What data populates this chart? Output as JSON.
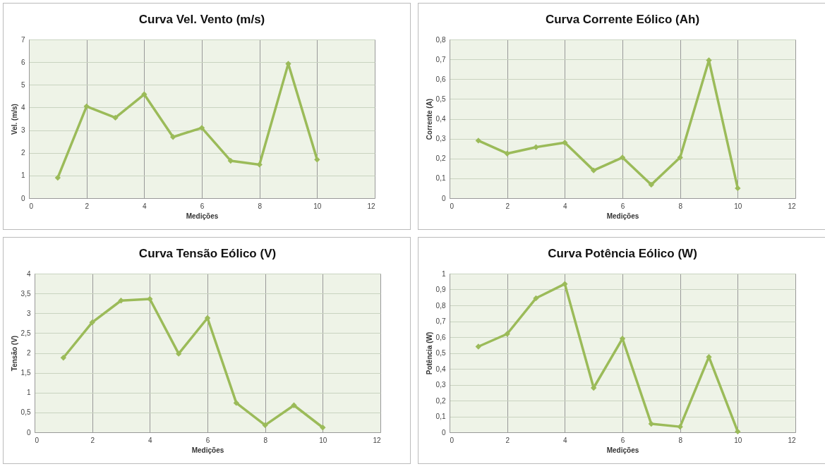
{
  "chart_data": [
    {
      "type": "line",
      "title": "Curva Vel. Vento (m/s)",
      "xlabel": "Medições",
      "ylabel": "Vel. (m/s)",
      "x": [
        1,
        2,
        3,
        4,
        5,
        6,
        7,
        8,
        9,
        10
      ],
      "series": [
        {
          "color": "#9bbb59",
          "values": [
            0.9,
            4.05,
            3.55,
            4.58,
            2.7,
            3.1,
            1.65,
            1.48,
            5.93,
            1.7
          ]
        }
      ],
      "xlim": [
        0,
        12
      ],
      "xticks": [
        0,
        2,
        4,
        6,
        8,
        10,
        12
      ],
      "ylim": [
        0,
        7
      ],
      "yticks": [
        0,
        1,
        2,
        3,
        4,
        5,
        6,
        7
      ],
      "grid": true,
      "marker": "diamond",
      "line_style": "solid"
    },
    {
      "type": "line",
      "title": "Curva Corrente Eólico (Ah)",
      "xlabel": "Medições",
      "ylabel": "Corrente (A)",
      "x": [
        1,
        2,
        3,
        4,
        5,
        6,
        7,
        8,
        9,
        10
      ],
      "series": [
        {
          "color": "#9bbb59",
          "values": [
            0.29,
            0.225,
            0.257,
            0.28,
            0.14,
            0.205,
            0.068,
            0.205,
            0.695,
            0.05
          ]
        }
      ],
      "xlim": [
        0,
        12
      ],
      "xticks": [
        0,
        2,
        4,
        6,
        8,
        10,
        12
      ],
      "ylim": [
        0,
        0.8
      ],
      "yticks": [
        0,
        {
          "value": 0.1,
          "label": "0,1"
        },
        {
          "value": 0.2,
          "label": "0,2"
        },
        {
          "value": 0.3,
          "label": "0,3"
        },
        {
          "value": 0.4,
          "label": "0,4"
        },
        {
          "value": 0.5,
          "label": "0,5"
        },
        {
          "value": 0.6,
          "label": "0,6"
        },
        {
          "value": 0.7,
          "label": "0,7"
        },
        {
          "value": 0.8,
          "label": "0,8"
        }
      ],
      "grid": true,
      "marker": "diamond",
      "line_style": "solid"
    },
    {
      "type": "line",
      "title": "Curva Tensão Eólico (V)",
      "xlabel": "Medições",
      "ylabel": "Tensão (V)",
      "x": [
        1,
        2,
        3,
        4,
        5,
        6,
        7,
        8,
        9,
        10
      ],
      "series": [
        {
          "color": "#9bbb59",
          "values": [
            1.88,
            2.77,
            3.32,
            3.36,
            1.98,
            2.88,
            0.74,
            0.18,
            0.68,
            0.12
          ]
        }
      ],
      "xlim": [
        0,
        12
      ],
      "xticks": [
        0,
        2,
        4,
        6,
        8,
        10,
        12
      ],
      "ylim": [
        0,
        4
      ],
      "yticks": [
        0,
        {
          "value": 0.5,
          "label": "0,5"
        },
        1,
        {
          "value": 1.5,
          "label": "1,5"
        },
        2,
        {
          "value": 2.5,
          "label": "2,5"
        },
        3,
        {
          "value": 3.5,
          "label": "3,5"
        },
        4
      ],
      "grid": true,
      "marker": "diamond",
      "line_style": "solid"
    },
    {
      "type": "line",
      "title": "Curva Potência Eólico (W)",
      "xlabel": "Medições",
      "ylabel": "Potência (W)",
      "x": [
        1,
        2,
        3,
        4,
        5,
        6,
        7,
        8,
        9,
        10
      ],
      "series": [
        {
          "color": "#9bbb59",
          "values": [
            0.54,
            0.62,
            0.845,
            0.935,
            0.28,
            0.59,
            0.053,
            0.035,
            0.475,
            0.005
          ]
        }
      ],
      "xlim": [
        0,
        12
      ],
      "xticks": [
        0,
        2,
        4,
        6,
        8,
        10,
        12
      ],
      "ylim": [
        0,
        1
      ],
      "yticks": [
        0,
        {
          "value": 0.1,
          "label": "0,1"
        },
        {
          "value": 0.2,
          "label": "0,2"
        },
        {
          "value": 0.3,
          "label": "0,3"
        },
        {
          "value": 0.4,
          "label": "0,4"
        },
        {
          "value": 0.5,
          "label": "0,5"
        },
        {
          "value": 0.6,
          "label": "0,6"
        },
        {
          "value": 0.7,
          "label": "0,7"
        },
        {
          "value": 0.8,
          "label": "0,8"
        },
        {
          "value": 0.9,
          "label": "0,9"
        },
        1
      ],
      "grid": true,
      "marker": "diamond",
      "line_style": "solid"
    }
  ]
}
